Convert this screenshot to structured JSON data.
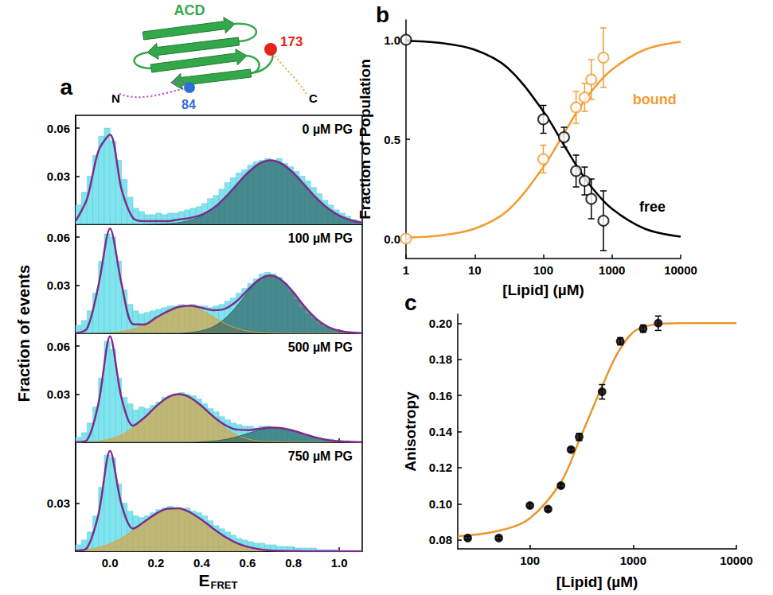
{
  "diagram": {
    "domain": "ACD",
    "domain_color": "#33a84a",
    "n_terminus": "N",
    "c_terminus": "C",
    "n_tail_color": "#b23fc4",
    "c_tail_color": "#f0a830",
    "sites": [
      {
        "label": "84",
        "color": "#2f6fd8"
      },
      {
        "label": "173",
        "color": "#e5231b"
      }
    ]
  },
  "chart_data": [
    {
      "type": "histogram",
      "label": "a",
      "xlabel": "E",
      "xlabel_subscript": "FRET",
      "ylabel": "Fraction of events",
      "grid": false,
      "color": "#80e4ee",
      "xlim": [
        -0.15,
        1.1
      ],
      "xticks": [
        {
          "value": 0,
          "label": "0.0"
        },
        0.2,
        0.4,
        0.6,
        0.8,
        {
          "value": 1,
          "label": "1.0"
        }
      ],
      "ylim": [
        0,
        0.068
      ],
      "bins": [
        -0.15,
        -0.125,
        -0.1,
        -0.075,
        -0.05,
        -0.025,
        0,
        0.025,
        0.05,
        0.075,
        0.1,
        0.125,
        0.15,
        0.175,
        0.2,
        0.225,
        0.25,
        0.275,
        0.3,
        0.325,
        0.35,
        0.375,
        0.4,
        0.425,
        0.45,
        0.475,
        0.5,
        0.525,
        0.55,
        0.575,
        0.6,
        0.625,
        0.65,
        0.675,
        0.7,
        0.725,
        0.75,
        0.775,
        0.8,
        0.825,
        0.85,
        0.875,
        0.9,
        0.925,
        0.95,
        0.975,
        1.0,
        1.025,
        1.05,
        1.075,
        1.1
      ],
      "fit_x": [
        -0.15,
        -0.1,
        -0.05,
        0,
        0.05,
        0.1,
        0.15,
        0.2,
        0.25,
        0.3,
        0.35,
        0.4,
        0.45,
        0.5,
        0.55,
        0.6,
        0.65,
        0.7,
        0.75,
        0.8,
        0.85,
        0.9,
        0.95,
        1.0,
        1.05,
        1.1
      ],
      "panels": [
        {
          "title": "0 µM PG",
          "yticks": [
            0.03,
            0.06
          ],
          "counts": [
            0.012,
            0.02,
            0.03,
            0.043,
            0.055,
            0.06,
            0.052,
            0.04,
            0.028,
            0.017,
            0.01,
            0.008,
            0.006,
            0.006,
            0.007,
            0.006,
            0.007,
            0.007,
            0.008,
            0.009,
            0.01,
            0.011,
            0.013,
            0.016,
            0.018,
            0.022,
            0.026,
            0.029,
            0.032,
            0.034,
            0.037,
            0.039,
            0.04,
            0.041,
            0.04,
            0.041,
            0.038,
            0.036,
            0.033,
            0.03,
            0.027,
            0.023,
            0.019,
            0.015,
            0.012,
            0.009,
            0.007,
            0.005,
            0.003,
            0.002
          ],
          "series": [
            {
              "type": "area",
              "color": "#2e6464",
              "values": [
                0,
                0,
                0,
                0,
                0,
                0,
                0,
                0.0002,
                0.0004,
                0.0011,
                0.0026,
                0.0054,
                0.01,
                0.0164,
                0.0243,
                0.032,
                0.0378,
                0.04,
                0.0378,
                0.032,
                0.0243,
                0.0164,
                0.01,
                0.0054,
                0.0026,
                0.0011
              ]
            },
            {
              "type": "line",
              "color": "#7b2d8b",
              "values": [
                0.002,
                0.016,
                0.046,
                0.056,
                0.022,
                0.004,
                0.002,
                0.002,
                0.002,
                0.003,
                0.004,
                0.006,
                0.01,
                0.0164,
                0.0243,
                0.032,
                0.0378,
                0.04,
                0.0378,
                0.032,
                0.0243,
                0.0164,
                0.01,
                0.0054,
                0.0026,
                0.0011
              ]
            }
          ]
        },
        {
          "title": "100 µM PG",
          "yticks": [
            0.03,
            0.06
          ],
          "counts": [
            0.005,
            0.008,
            0.014,
            0.025,
            0.045,
            0.062,
            0.06,
            0.045,
            0.027,
            0.018,
            0.014,
            0.012,
            0.013,
            0.014,
            0.015,
            0.016,
            0.017,
            0.017,
            0.018,
            0.017,
            0.018,
            0.017,
            0.017,
            0.016,
            0.017,
            0.018,
            0.02,
            0.022,
            0.025,
            0.028,
            0.031,
            0.034,
            0.037,
            0.038,
            0.037,
            0.035,
            0.031,
            0.026,
            0.021,
            0.016,
            0.012,
            0.009,
            0.006,
            0.004,
            0.003,
            0.002,
            0.001,
            0.001,
            0.001,
            0
          ],
          "series": [
            {
              "type": "area",
              "color": "#d9a441",
              "values": [
                0,
                0,
                0.0001,
                0.0004,
                0.0011,
                0.0027,
                0.0055,
                0.0095,
                0.0136,
                0.0165,
                0.0168,
                0.0143,
                0.0103,
                0.0062,
                0.0032,
                0.0014,
                0.0005,
                0.0001,
                0,
                0,
                0,
                0,
                0,
                0,
                0,
                0
              ]
            },
            {
              "type": "area",
              "color": "#2e6464",
              "values": [
                0,
                0,
                0,
                0,
                0,
                0,
                0,
                0,
                0,
                0,
                0.0005,
                0.0016,
                0.0041,
                0.009,
                0.0165,
                0.0255,
                0.033,
                0.036,
                0.033,
                0.0255,
                0.0165,
                0.009,
                0.0041,
                0.0016,
                0.0005,
                0.0001
              ]
            },
            {
              "type": "line",
              "color": "#7b2d8b",
              "values": [
                0.0001,
                0.003,
                0.0301,
                0.0654,
                0.0311,
                0.0057,
                0.0055,
                0.0097,
                0.0136,
                0.0165,
                0.0173,
                0.0159,
                0.0144,
                0.0152,
                0.0197,
                0.0269,
                0.0335,
                0.0361,
                0.033,
                0.0255,
                0.0165,
                0.009,
                0.0041,
                0.0016,
                0.0005,
                0.0001
              ]
            }
          ]
        },
        {
          "title": "500 µM PG",
          "yticks": [
            0.03,
            0.06
          ],
          "counts": [
            0.003,
            0.006,
            0.012,
            0.022,
            0.04,
            0.063,
            0.058,
            0.04,
            0.028,
            0.024,
            0.02,
            0.022,
            0.021,
            0.023,
            0.025,
            0.028,
            0.029,
            0.03,
            0.031,
            0.03,
            0.029,
            0.027,
            0.024,
            0.021,
            0.019,
            0.016,
            0.014,
            0.012,
            0.011,
            0.01,
            0.01,
            0.009,
            0.01,
            0.01,
            0.009,
            0.009,
            0.008,
            0.007,
            0.006,
            0.005,
            0.004,
            0.003,
            0.003,
            0.002,
            0.002,
            0.001,
            0.001,
            0.001,
            0,
            0
          ],
          "series": [
            {
              "type": "area",
              "color": "#d9a441",
              "values": [
                0.0001,
                0.0003,
                0.0008,
                0.0021,
                0.0047,
                0.0092,
                0.0154,
                0.0223,
                0.0279,
                0.03,
                0.0279,
                0.0223,
                0.0154,
                0.0092,
                0.0047,
                0.0021,
                0.0008,
                0.0003,
                0.0001,
                0,
                0,
                0,
                0,
                0,
                0,
                0
              ]
            },
            {
              "type": "area",
              "color": "#2e6464",
              "values": [
                0,
                0,
                0,
                0,
                0,
                0,
                0,
                0,
                0,
                0,
                0,
                0.0003,
                0.0007,
                0.0017,
                0.0033,
                0.0055,
                0.0076,
                0.0089,
                0.0087,
                0.0072,
                0.005,
                0.0029,
                0.0014,
                0.0006,
                0.0002,
                0.0001
              ]
            },
            {
              "type": "line",
              "color": "#7b2d8b",
              "values": [
                0.0001,
                0.0014,
                0.0246,
                0.0661,
                0.0278,
                0.0103,
                0.0154,
                0.0223,
                0.0279,
                0.03,
                0.0279,
                0.0226,
                0.0161,
                0.0109,
                0.008,
                0.0076,
                0.0084,
                0.0092,
                0.0088,
                0.0072,
                0.005,
                0.0029,
                0.0014,
                0.0006,
                0.0002,
                0.0001
              ]
            }
          ]
        },
        {
          "title": "750 µM PG",
          "yticks": [
            0.03
          ],
          "counts": [
            0.004,
            0.007,
            0.012,
            0.022,
            0.04,
            0.06,
            0.058,
            0.042,
            0.03,
            0.025,
            0.022,
            0.021,
            0.022,
            0.024,
            0.026,
            0.027,
            0.028,
            0.027,
            0.026,
            0.027,
            0.025,
            0.024,
            0.022,
            0.019,
            0.016,
            0.014,
            0.012,
            0.01,
            0.008,
            0.007,
            0.006,
            0.005,
            0.005,
            0.004,
            0.004,
            0.003,
            0.003,
            0.003,
            0.002,
            0.002,
            0.002,
            0.002,
            0.001,
            0.001,
            0.001,
            0.001,
            0,
            0,
            0,
            0
          ],
          "series": [
            {
              "type": "area",
              "color": "#d9a441",
              "values": [
                0.0004,
                0.0011,
                0.0024,
                0.0047,
                0.0083,
                0.0131,
                0.0185,
                0.0234,
                0.0265,
                0.0268,
                0.0242,
                0.0196,
                0.0142,
                0.0092,
                0.0053,
                0.0028,
                0.0013,
                0.0005,
                0.0002,
                0.0001,
                0,
                0,
                0,
                0,
                0,
                0
              ]
            },
            {
              "type": "line",
              "color": "#7b2d8b",
              "values": [
                0.0004,
                0.0021,
                0.0233,
                0.0627,
                0.0292,
                0.0141,
                0.0185,
                0.0234,
                0.0265,
                0.0268,
                0.0242,
                0.0196,
                0.0142,
                0.0092,
                0.0053,
                0.0028,
                0.0013,
                0.0005,
                0.0002,
                0.0001,
                0,
                0,
                0,
                0,
                0,
                0
              ]
            }
          ]
        }
      ]
    },
    {
      "type": "scatter",
      "label": "b",
      "xlabel": "[Lipid] (µM)",
      "ylabel": "Fraction of Population",
      "grid": false,
      "log": "x",
      "xlim": [
        1,
        10000
      ],
      "xticks": [
        1,
        10,
        100,
        1000,
        10000
      ],
      "ylim": [
        -0.1,
        1.1
      ],
      "yticks": [
        {
          "value": 0,
          "label": "0.0"
        },
        0.5,
        {
          "value": 1,
          "label": "1.0"
        }
      ],
      "series": [
        {
          "type": "line",
          "color": "#000000",
          "x": [
            1,
            3,
            10,
            30,
            100,
            200,
            300,
            500,
            1000,
            3000,
            10000
          ],
          "values": [
            0.995,
            0.985,
            0.95,
            0.86,
            0.64,
            0.47,
            0.37,
            0.26,
            0.15,
            0.05,
            0.01
          ]
        },
        {
          "type": "line",
          "color": "#f39c33",
          "x": [
            1,
            3,
            10,
            30,
            100,
            200,
            300,
            500,
            1000,
            3000,
            10000
          ],
          "values": [
            0.005,
            0.015,
            0.05,
            0.14,
            0.36,
            0.53,
            0.63,
            0.74,
            0.85,
            0.95,
            0.99
          ]
        },
        {
          "type": "scatter",
          "color": "#000000",
          "marker": "open_circle",
          "x": [
            1,
            100,
            200,
            300,
            400,
            500,
            750
          ],
          "values": [
            1.0,
            0.6,
            0.51,
            0.34,
            0.29,
            0.2,
            0.09
          ],
          "errors": [
            0,
            0.07,
            0.05,
            0.08,
            0.07,
            0.1,
            0.15
          ],
          "annotation": {
            "text": "free",
            "x": 2500,
            "y": 0.16
          }
        },
        {
          "type": "scatter",
          "color": "#f39c33",
          "marker": "open_circle",
          "x": [
            1,
            100,
            300,
            400,
            500,
            750
          ],
          "values": [
            0.0,
            0.4,
            0.66,
            0.71,
            0.8,
            0.91
          ],
          "errors": [
            0,
            0.07,
            0.08,
            0.07,
            0.1,
            0.15
          ],
          "annotation": {
            "text": "bound",
            "x": 2000,
            "y": 0.7
          }
        }
      ]
    },
    {
      "type": "scatter",
      "label": "c",
      "xlabel": "[Lipid] (µM)",
      "ylabel": "Anisotropy",
      "grid": false,
      "log": "x",
      "xlim": [
        20,
        10000
      ],
      "xticks": [
        100,
        1000,
        10000
      ],
      "ylim": [
        0.075,
        0.205
      ],
      "yticks": [
        0.08,
        {
          "value": 0.1,
          "label": "0.10"
        },
        0.12,
        0.14,
        0.16,
        0.18,
        {
          "value": 0.2,
          "label": "0.20"
        }
      ],
      "series": [
        {
          "type": "line",
          "color": "#e8962e",
          "x": [
            20,
            50,
            100,
            200,
            300,
            400,
            500,
            700,
            1000,
            1500,
            3000,
            10000
          ],
          "values": [
            0.082,
            0.085,
            0.092,
            0.112,
            0.135,
            0.152,
            0.165,
            0.183,
            0.195,
            0.199,
            0.2,
            0.2
          ]
        },
        {
          "type": "scatter",
          "color": "#000000",
          "marker": "circle",
          "x": [
            25,
            50,
            100,
            150,
            200,
            250,
            300,
            500,
            750,
            1250,
            1750
          ],
          "values": [
            0.081,
            0.081,
            0.099,
            0.097,
            0.11,
            0.13,
            0.137,
            0.162,
            0.19,
            0.197,
            0.2
          ],
          "errors": [
            0.001,
            0.001,
            0.001,
            0.001,
            0.001,
            0.001,
            0.002,
            0.004,
            0.002,
            0.002,
            0.004
          ]
        }
      ]
    }
  ]
}
